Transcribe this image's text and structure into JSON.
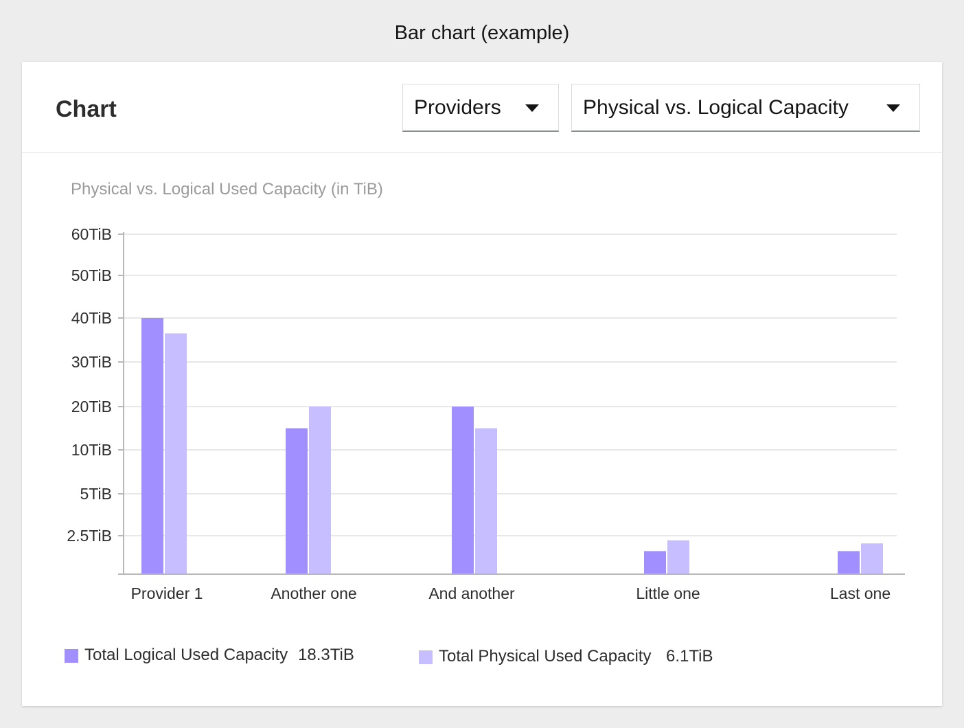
{
  "page": {
    "caption": "Bar chart (example)"
  },
  "card": {
    "title": "Chart",
    "dropdown_group": {
      "label": "Providers"
    },
    "dropdown_metric": {
      "label": "Physical vs. Logical Capacity"
    }
  },
  "colors": {
    "logical": "#a18fff",
    "physical": "#c6beff",
    "grid": "#e8e8e8",
    "axis": "#b8b8b8"
  },
  "icons": {
    "dropdown_caret": "caret-down-icon"
  },
  "chart_data": {
    "type": "bar",
    "title": "Physical vs. Logical Used Capacity (in TiB)",
    "xlabel": "",
    "ylabel": "",
    "categories": [
      "Provider 1",
      "Another one",
      "And another",
      "Little one",
      "Last one"
    ],
    "series": [
      {
        "name": "Total Logical Used Capacity",
        "values": [
          40,
          15,
          20,
          1.5,
          1.5
        ]
      },
      {
        "name": "Total Physical Used Capacity",
        "values": [
          36.5,
          20,
          15,
          2.2,
          2.0
        ]
      }
    ],
    "y_ticks": [
      "2.5TiB",
      "5TiB",
      "10TiB",
      "20TiB",
      "30TiB",
      "40TiB",
      "50TiB",
      "60TiB"
    ],
    "ylim": [
      0,
      60
    ],
    "grid": true,
    "legend": {
      "position": "bottom",
      "items": [
        {
          "name": "Total Logical Used Capacity",
          "value": "18.3TiB"
        },
        {
          "name": "Total Physical Used Capacity",
          "value": "6.1TiB"
        }
      ]
    }
  }
}
